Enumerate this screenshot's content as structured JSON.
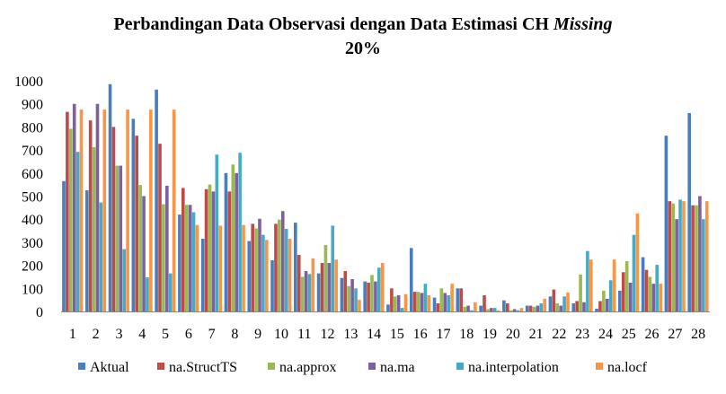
{
  "chart_data": {
    "type": "bar",
    "title": {
      "line1_prefix": "Perbandingan Data Observasi dengan Data Estimasi CH ",
      "line1_italic": "Missing",
      "line2": "20%"
    },
    "xlabel": "",
    "ylabel": "",
    "ylim": [
      0,
      1000
    ],
    "yticks": [
      0,
      100,
      200,
      300,
      400,
      500,
      600,
      700,
      800,
      900,
      1000
    ],
    "grid": false,
    "legend_position": "bottom",
    "categories": [
      "1",
      "2",
      "3",
      "4",
      "5",
      "6",
      "7",
      "8",
      "9",
      "10",
      "11",
      "12",
      "13",
      "14",
      "15",
      "16",
      "17",
      "18",
      "19",
      "20",
      "21",
      "22",
      "23",
      "24",
      "25",
      "26",
      "27",
      "28"
    ],
    "series": [
      {
        "name": "Aktual",
        "color": "#4a7ebb",
        "values": [
          565,
          525,
          985,
          835,
          962,
          420,
          315,
          600,
          305,
          222,
          385,
          165,
          145,
          130,
          30,
          275,
          60,
          100,
          25,
          48,
          25,
          65,
          35,
          12,
          90,
          235,
          762,
          860
        ]
      },
      {
        "name": "na.StructTS",
        "color": "#be4b48",
        "values": [
          865,
          828,
          800,
          762,
          727,
          535,
          530,
          520,
          380,
          380,
          245,
          210,
          175,
          125,
          100,
          85,
          35,
          100,
          70,
          35,
          25,
          95,
          45,
          45,
          170,
          180,
          478,
          460
        ]
      },
      {
        "name": "na.approx",
        "color": "#98b954",
        "values": [
          792,
          712,
          632,
          548,
          465,
          462,
          550,
          637,
          360,
          398,
          150,
          288,
          110,
          158,
          65,
          85,
          100,
          20,
          10,
          5,
          20,
          35,
          160,
          90,
          218,
          150,
          468,
          460
        ]
      },
      {
        "name": "na.ma",
        "color": "#7d60a0",
        "values": [
          900,
          900,
          632,
          500,
          545,
          462,
          520,
          600,
          402,
          435,
          175,
          210,
          140,
          130,
          70,
          80,
          80,
          25,
          15,
          10,
          25,
          25,
          40,
          55,
          125,
          120,
          400,
          500
        ]
      },
      {
        "name": "na.interpolation",
        "color": "#46aac5",
        "values": [
          692,
          472,
          270,
          148,
          165,
          430,
          680,
          688,
          332,
          358,
          162,
          372,
          100,
          190,
          15,
          120,
          70,
          5,
          15,
          5,
          35,
          65,
          262,
          135,
          332,
          202,
          485,
          400
        ]
      },
      {
        "name": "na.locf",
        "color": "#f79646",
        "values": [
          875,
          875,
          875,
          875,
          875,
          375,
          372,
          375,
          310,
          315,
          230,
          225,
          50,
          210,
          75,
          70,
          120,
          40,
          5,
          15,
          55,
          82,
          225,
          225,
          425,
          120,
          478,
          478
        ]
      }
    ]
  }
}
